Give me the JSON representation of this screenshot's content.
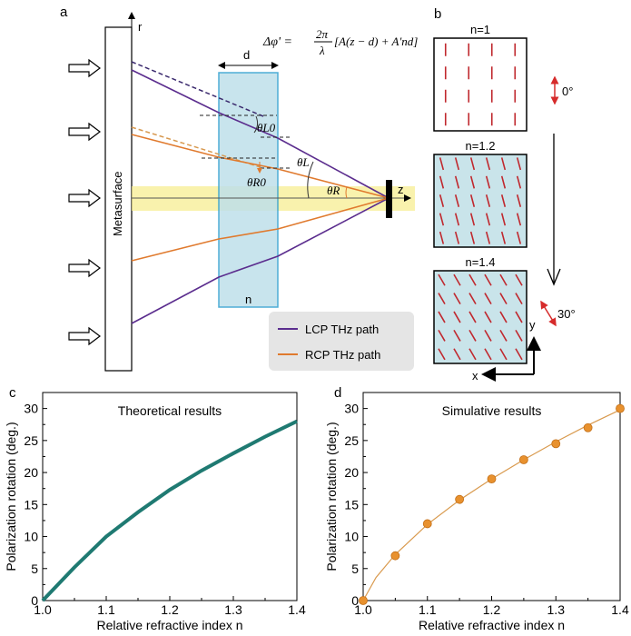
{
  "panel_a": {
    "label": "a",
    "formula": "Δφ' = 2π/λ [A(z − d) + A'nd]",
    "formula_parts": {
      "lhs": "Δφ' =",
      "num": "2π",
      "den": "λ",
      "bracket": "[A(z − d) + A'nd]"
    },
    "metasurface_label": "Metasurface",
    "r_label": "r",
    "z_label": "z",
    "d_label": "d",
    "n_label": "n",
    "theta_L0": "θL0",
    "theta_R0": "θR0",
    "theta_L": "θL",
    "theta_R": "θR",
    "legend": [
      {
        "label": "LCP THz path",
        "color": "#5b2d8e"
      },
      {
        "label": "RCP THz path",
        "color": "#e07a2e"
      }
    ]
  },
  "panel_b": {
    "label": "b",
    "cells": [
      {
        "title": "n=1",
        "angle_deg": 0,
        "filled": false
      },
      {
        "title": "n=1.2",
        "angle_deg": 15,
        "filled": true
      },
      {
        "title": "n=1.4",
        "angle_deg": 30,
        "filled": true
      }
    ],
    "angle_start": "0°",
    "angle_end": "30°",
    "x_label": "x",
    "y_label": "y"
  },
  "chart_data": [
    {
      "panel": "c",
      "type": "line",
      "title": "Theoretical results",
      "xlabel": "Relative refractive index n",
      "ylabel": "Polarization rotation (deg.)",
      "xlim": [
        1.0,
        1.4
      ],
      "ylim": [
        0,
        32.5
      ],
      "xticks": [
        "1.0",
        "1.1",
        "1.2",
        "1.3",
        "1.4"
      ],
      "yticks": [
        "0",
        "5",
        "10",
        "15",
        "20",
        "25",
        "30"
      ],
      "color": "#1f7a72",
      "x": [
        1.0,
        1.05,
        1.1,
        1.15,
        1.2,
        1.25,
        1.3,
        1.35,
        1.4
      ],
      "y": [
        0,
        5.2,
        10,
        13.8,
        17.3,
        20.3,
        23,
        25.6,
        28
      ]
    },
    {
      "panel": "d",
      "type": "scatter",
      "title": "Simulative results",
      "xlabel": "Relative refractive index n",
      "ylabel": "Polarization rotation (deg.)",
      "xlim": [
        1.0,
        1.4
      ],
      "ylim": [
        0,
        32.5
      ],
      "xticks": [
        "1.0",
        "1.1",
        "1.2",
        "1.3",
        "1.4"
      ],
      "yticks": [
        "0",
        "5",
        "10",
        "15",
        "20",
        "25",
        "30"
      ],
      "color": "#e8912e",
      "x": [
        1.0,
        1.05,
        1.1,
        1.15,
        1.2,
        1.25,
        1.3,
        1.35,
        1.4
      ],
      "y": [
        0,
        7,
        12,
        15.8,
        19,
        22,
        24.5,
        27,
        30
      ],
      "fit": {
        "x": [
          1.0,
          1.02,
          1.05,
          1.1,
          1.15,
          1.2,
          1.25,
          1.3,
          1.35,
          1.4
        ],
        "y": [
          0,
          3.6,
          7.2,
          11.9,
          15.7,
          19,
          22,
          24.8,
          27.4,
          29.8
        ]
      }
    }
  ]
}
